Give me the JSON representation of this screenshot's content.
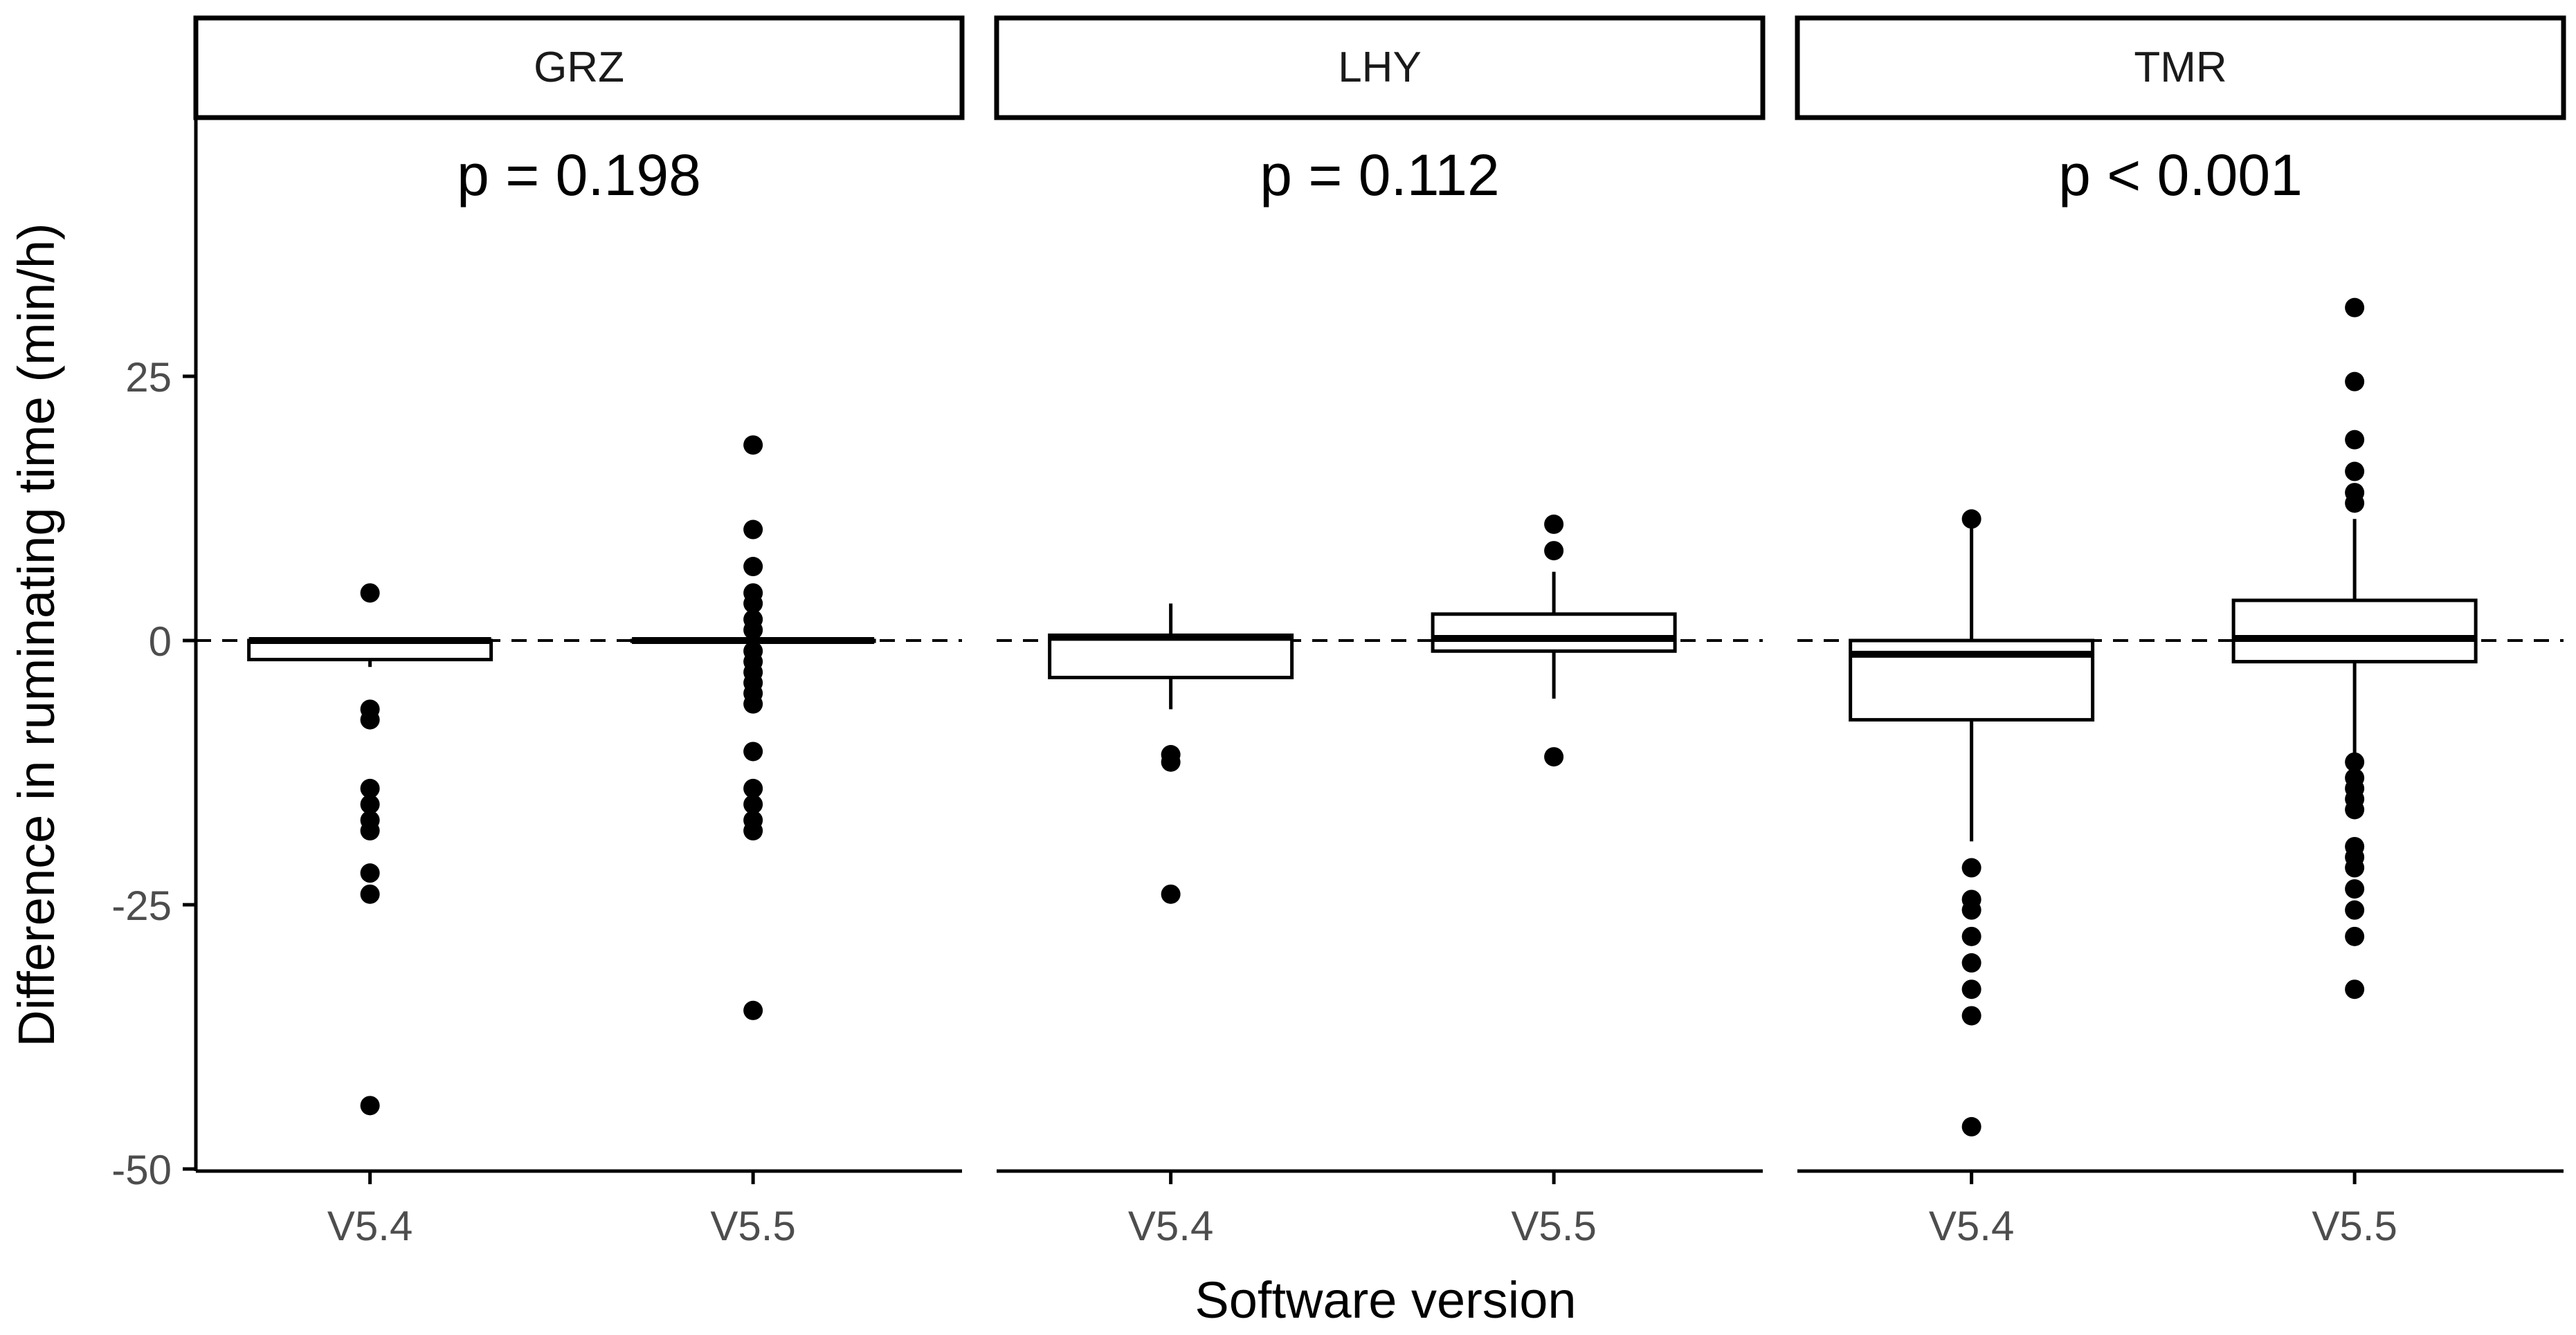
{
  "chart_data": {
    "type": "box",
    "xlabel": "Software version",
    "ylabel": "Difference in ruminating time (min/h)",
    "categories": [
      "V5.4",
      "V5.5"
    ],
    "ylim": [
      -50,
      50
    ],
    "y_ticks": [
      25,
      0,
      -25,
      -50
    ],
    "y_tick_labels": [
      "25",
      "0",
      "-25",
      "-50"
    ],
    "reference_line": {
      "y": 0,
      "style": "dashed"
    },
    "grid": false,
    "colors": {
      "box_fill": "#ffffff",
      "stroke": "#000000",
      "point": "#000000",
      "axis_text": "#4d4d4d"
    },
    "panels": [
      {
        "name": "GRZ",
        "p_label": "p = 0.198",
        "boxes": [
          {
            "category": "V5.4",
            "q1": -1.8,
            "median": 0,
            "q3": 0,
            "whisker_low": -2.5,
            "whisker_high": 0,
            "outliers": [
              4.5,
              -6.5,
              -7.5,
              -14,
              -15.5,
              -17,
              -18,
              -22,
              -24,
              -44
            ]
          },
          {
            "category": "V5.5",
            "q1": 0,
            "median": 0,
            "q3": 0,
            "whisker_low": 0,
            "whisker_high": 0,
            "outliers": [
              18.5,
              10.5,
              7,
              4.5,
              3.5,
              2,
              1,
              -1,
              -2,
              -3,
              -4,
              -5,
              -6,
              -10.5,
              -14,
              -15.5,
              -17,
              -18,
              -35
            ]
          }
        ]
      },
      {
        "name": "LHY",
        "p_label": "p = 0.112",
        "boxes": [
          {
            "category": "V5.4",
            "q1": -3.5,
            "median": 0.3,
            "q3": 0.5,
            "whisker_low": -6.5,
            "whisker_high": 3.5,
            "outliers": [
              -10.8,
              -11.5,
              -24
            ]
          },
          {
            "category": "V5.5",
            "q1": -1,
            "median": 0.2,
            "q3": 2.5,
            "whisker_low": -5.5,
            "whisker_high": 6.5,
            "outliers": [
              11,
              8.5,
              -11
            ]
          }
        ]
      },
      {
        "name": "TMR",
        "p_label": "p < 0.001",
        "boxes": [
          {
            "category": "V5.4",
            "q1": -7.5,
            "median": -1.3,
            "q3": 0,
            "whisker_low": -19,
            "whisker_high": 11.5,
            "outliers": [
              11.5,
              -21.5,
              -24.5,
              -25.5,
              -28,
              -30.5,
              -33,
              -35.5,
              -46
            ]
          },
          {
            "category": "V5.5",
            "q1": -2,
            "median": 0.2,
            "q3": 3.8,
            "whisker_low": -11,
            "whisker_high": 11.5,
            "outliers": [
              31.5,
              24.5,
              19,
              16,
              14,
              13,
              -11.5,
              -13,
              -14,
              -15,
              -16,
              -19.5,
              -20.5,
              -21.5,
              -23.5,
              -25.5,
              -28,
              -33
            ]
          }
        ]
      }
    ]
  }
}
